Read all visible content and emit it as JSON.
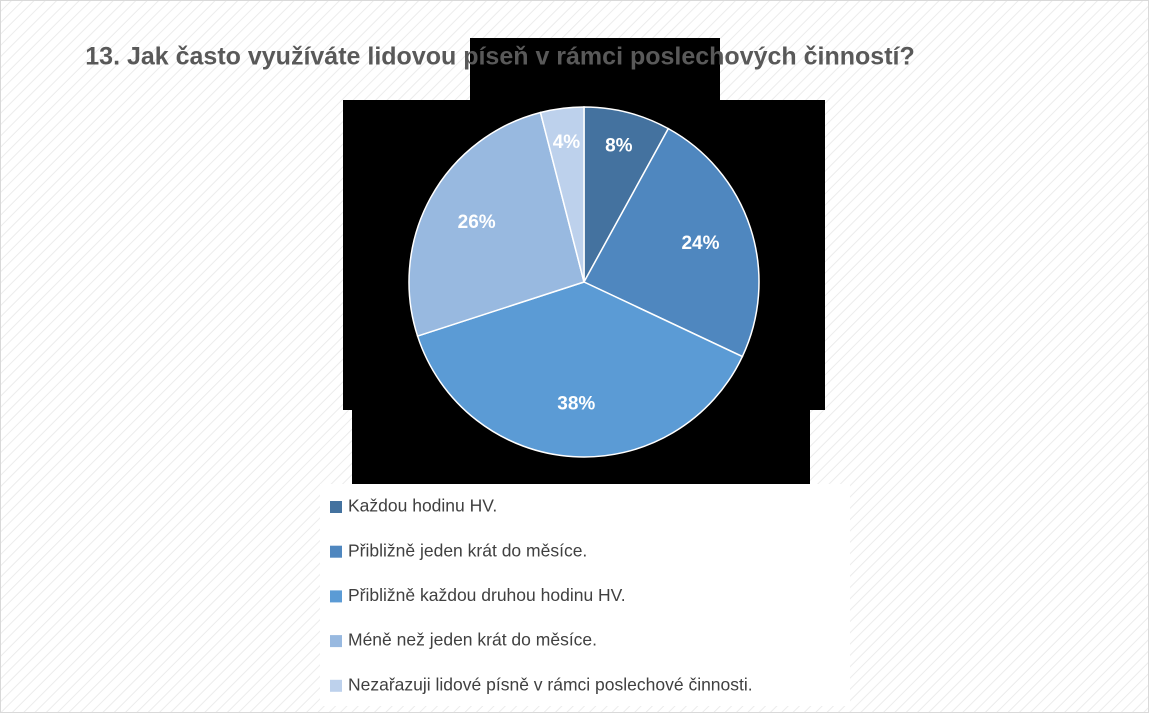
{
  "chart_data": {
    "type": "pie",
    "title": "13. Jak často využíváte lidovou píseň v rámci poslechových činností?",
    "categories": [
      "Každou hodinu HV.",
      "Přibližně jeden krát do měsíce.",
      "Přibližně každou druhou hodinu HV.",
      "Méně než jeden krát do měsíce.",
      "Nezařazuji lidové písně v rámci poslechové činnosti."
    ],
    "values": [
      8,
      24,
      38,
      26,
      4
    ],
    "value_labels": [
      "8%",
      "24%",
      "38%",
      "26%",
      "4%"
    ],
    "colors": [
      "#44729f",
      "#4f87bf",
      "#5b9bd5",
      "#98b9e0",
      "#bdd1ec"
    ]
  }
}
